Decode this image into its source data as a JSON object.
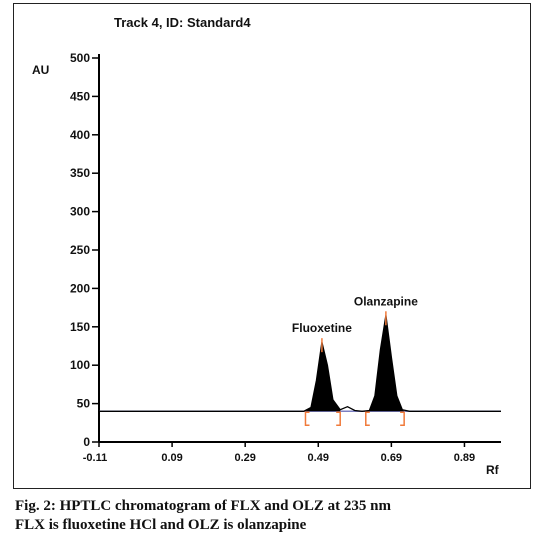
{
  "chart_data": {
    "type": "line",
    "title": "Track 4, ID: Standard4",
    "ylabel": "AU",
    "xlabel": "Rf",
    "xlim": [
      -0.11,
      0.99
    ],
    "ylim": [
      0,
      500
    ],
    "x_ticks": [
      "-0.11",
      "0.09",
      "0.29",
      "0.49",
      "0.69",
      "0.89"
    ],
    "y_ticks": [
      "0",
      "50",
      "100",
      "150",
      "200",
      "250",
      "300",
      "350",
      "400",
      "450",
      "500"
    ],
    "baseline_au": 40,
    "series": [
      {
        "x": [
          -0.11,
          0.45,
          0.47,
          0.485,
          0.5,
          0.515,
          0.53,
          0.55,
          0.57,
          0.59,
          0.61,
          0.63,
          0.645,
          0.66,
          0.675,
          0.69,
          0.705,
          0.72,
          0.74,
          0.99
        ],
        "y": [
          40,
          40,
          45,
          80,
          130,
          100,
          55,
          42,
          46,
          41,
          40,
          41,
          60,
          120,
          165,
          110,
          60,
          42,
          40,
          40
        ]
      }
    ],
    "peaks": [
      {
        "label": "Fluoxetine",
        "rf": 0.5,
        "au": 130,
        "start": 0.455,
        "end": 0.55
      },
      {
        "label": "Olanzapine",
        "rf": 0.675,
        "au": 165,
        "start": 0.62,
        "end": 0.725
      }
    ],
    "colors": {
      "peak_fill": "#000000",
      "baseline": "#7b7fc2",
      "integration_marks": "#f07a3a",
      "axis": "#000000"
    }
  },
  "caption": {
    "line1": "Fig. 2: HPTLC chromatogram of FLX and OLZ at 235 nm",
    "line2": "FLX is fluoxetine HCl and OLZ is olanzapine"
  }
}
